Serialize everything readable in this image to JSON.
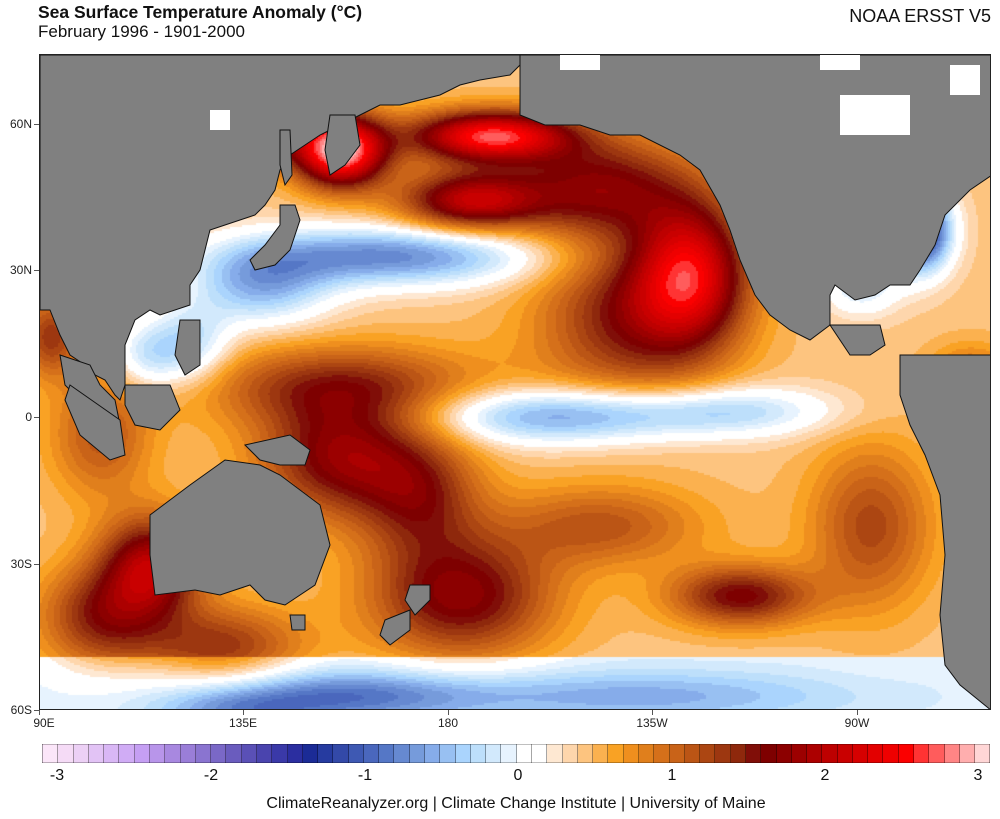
{
  "header": {
    "title": "Sea Surface Temperature Anomaly (°C)",
    "subtitle": "February 1996 - 1901-2000",
    "source": "NOAA ERSST V5"
  },
  "footer": {
    "credit": "ClimateReanalyzer.org | Climate Change Institute | University of Maine"
  },
  "chart_data": {
    "type": "heatmap",
    "title": "Sea Surface Temperature Anomaly (°C)",
    "subtitle": "February 1996 - 1901-2000",
    "variable": "SST anomaly",
    "units": "°C",
    "projection": "equirectangular",
    "xlim": [
      "90E",
      "345E (15W)"
    ],
    "ylim": [
      "60S",
      "75N"
    ],
    "x_ticks": [
      "90E",
      "135E",
      "180",
      "135W",
      "90W"
    ],
    "y_ticks": [
      "60N",
      "30N",
      "0",
      "30S",
      "60S"
    ],
    "land_color": "#808080",
    "colorbar": {
      "min": -3,
      "max": 3,
      "step": 0.1,
      "labels": [
        "-3",
        "-2",
        "-1",
        "0",
        "1",
        "2",
        "3"
      ],
      "colors": [
        "#fbe6f9",
        "#f5dbf6",
        "#ecd0f5",
        "#e2c3f5",
        "#d9b7f5",
        "#d0acf5",
        "#c59ff3",
        "#b895ea",
        "#a888e0",
        "#9a7ed8",
        "#8a74d0",
        "#7a68c7",
        "#6a5cbe",
        "#5a50b6",
        "#4a44ae",
        "#3a39a8",
        "#2b2ea0",
        "#1b2b96",
        "#263ba0",
        "#3349a8",
        "#3e59b3",
        "#4a67bd",
        "#5577c6",
        "#6689d1",
        "#769bdb",
        "#86acea",
        "#98c0f2",
        "#aad4fd",
        "#bddffb",
        "#d2e9fc",
        "#e7f3fe",
        "#ffffff",
        "#ffffff",
        "#fee8d2",
        "#fed6ac",
        "#fdc47f",
        "#fbb14f",
        "#f9a224",
        "#ef8f1e",
        "#e07f1c",
        "#d5701a",
        "#c96318",
        "#bb5515",
        "#ac4612",
        "#9d3710",
        "#8e280c",
        "#800e08",
        "#7e0000",
        "#8c0000",
        "#9c0000",
        "#ac0000",
        "#bd0000",
        "#c90000",
        "#d60000",
        "#e30000",
        "#ef0000",
        "#fb0000",
        "#ff3333",
        "#ff5c5c",
        "#ff8585",
        "#ffaeae",
        "#ffd6d6"
      ]
    },
    "features": [
      {
        "name": "NE Pacific warm anomaly (off California/Baja)",
        "peak_anomaly": 1.6
      },
      {
        "name": "Sea of Okhotsk warm anomaly",
        "peak_anomaly": 2.5
      },
      {
        "name": "Gulf of Alaska / Bering coastal warm",
        "peak_anomaly": 2.3
      },
      {
        "name": "North Pacific cold band (~35N)",
        "peak_anomaly": -1.2
      },
      {
        "name": "Equatorial central Pacific cold tongue",
        "peak_anomaly": -1.1
      },
      {
        "name": "US Atlantic coast cold anomaly",
        "peak_anomaly": -1.8
      },
      {
        "name": "Western Pacific / Coral Sea warm",
        "peak_anomaly": 1.3
      },
      {
        "name": "Off Western Australia warm",
        "peak_anomaly": 1.6
      },
      {
        "name": "Tasman Sea / East of New Zealand warm",
        "peak_anomaly": 1.3
      },
      {
        "name": "South Pacific subtropical warm (~35S 140W)",
        "peak_anomaly": 1.2
      },
      {
        "name": "Southern Ocean cold (~55S)",
        "peak_anomaly": -0.8
      }
    ]
  }
}
